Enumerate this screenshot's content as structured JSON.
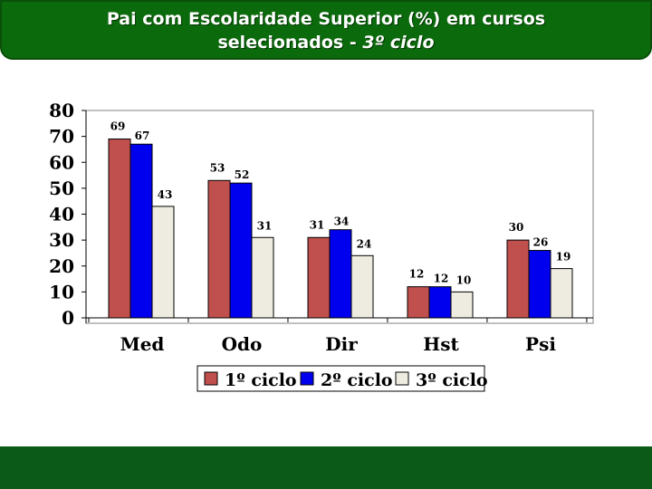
{
  "header": {
    "title_line1": "Pai com Escolaridade Superior (%) em cursos",
    "title_line2_prefix": "selecionados  - ",
    "title_line2_italic": "3º ciclo"
  },
  "colors": {
    "banner": "#0b6a0b",
    "footer": "#0b5a18",
    "series": [
      "#c0504d",
      "#0000ee",
      "#eeebe0"
    ]
  },
  "chart_data": {
    "type": "bar",
    "categories": [
      "Med",
      "Odo",
      "Dir",
      "Hst",
      "Psi"
    ],
    "series": [
      {
        "name": "1º ciclo",
        "values": [
          69,
          53,
          31,
          12,
          30
        ]
      },
      {
        "name": "2º ciclo",
        "values": [
          67,
          52,
          34,
          12,
          26
        ]
      },
      {
        "name": "3º ciclo",
        "values": [
          43,
          31,
          24,
          10,
          19
        ]
      }
    ],
    "ylim": [
      0,
      80
    ],
    "yticks": [
      0,
      10,
      20,
      30,
      40,
      50,
      60,
      70,
      80
    ],
    "grid": false,
    "legend_position": "bottom"
  }
}
